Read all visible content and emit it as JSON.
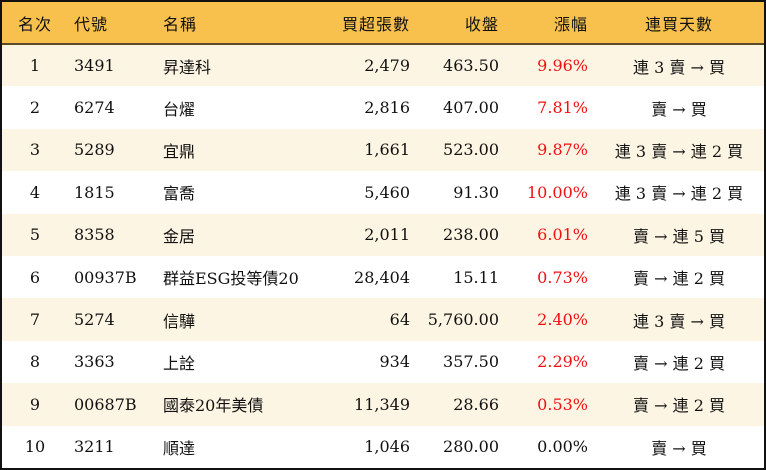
{
  "headers": [
    "名次",
    "代號",
    "名稱",
    "買超張數",
    "收盤",
    "漲幅",
    "連買天數"
  ],
  "colors": {
    "header_bg": "#F8C14E",
    "odd_row_bg": "#FDF5E3",
    "up": "#F01010"
  },
  "rows": [
    {
      "rank": "1",
      "code": "3491",
      "name": "昇達科",
      "net_buy": "2,479",
      "close": "463.50",
      "change": "9.96%",
      "up": true,
      "streak": "連 3 賣 → 買"
    },
    {
      "rank": "2",
      "code": "6274",
      "name": "台燿",
      "net_buy": "2,816",
      "close": "407.00",
      "change": "7.81%",
      "up": true,
      "streak": "賣 → 買"
    },
    {
      "rank": "3",
      "code": "5289",
      "name": "宜鼎",
      "net_buy": "1,661",
      "close": "523.00",
      "change": "9.87%",
      "up": true,
      "streak": "連 3 賣 → 連 2 買"
    },
    {
      "rank": "4",
      "code": "1815",
      "name": "富喬",
      "net_buy": "5,460",
      "close": "91.30",
      "change": "10.00%",
      "up": true,
      "streak": "連 3 賣 → 連 2 買"
    },
    {
      "rank": "5",
      "code": "8358",
      "name": "金居",
      "net_buy": "2,011",
      "close": "238.00",
      "change": "6.01%",
      "up": true,
      "streak": "賣 → 連 5 買"
    },
    {
      "rank": "6",
      "code": "00937B",
      "name": "群益ESG投等債20",
      "net_buy": "28,404",
      "close": "15.11",
      "change": "0.73%",
      "up": true,
      "streak": "賣 → 連 2 買"
    },
    {
      "rank": "7",
      "code": "5274",
      "name": "信驊",
      "net_buy": "64",
      "close": "5,760.00",
      "change": "2.40%",
      "up": true,
      "streak": "連 3 賣 → 買"
    },
    {
      "rank": "8",
      "code": "3363",
      "name": "上詮",
      "net_buy": "934",
      "close": "357.50",
      "change": "2.29%",
      "up": true,
      "streak": "賣 → 連 2 買"
    },
    {
      "rank": "9",
      "code": "00687B",
      "name": "國泰20年美債",
      "net_buy": "11,349",
      "close": "28.66",
      "change": "0.53%",
      "up": true,
      "streak": "賣 → 連 2 買"
    },
    {
      "rank": "10",
      "code": "3211",
      "name": "順達",
      "net_buy": "1,046",
      "close": "280.00",
      "change": "0.00%",
      "up": false,
      "streak": "賣 → 買"
    }
  ]
}
